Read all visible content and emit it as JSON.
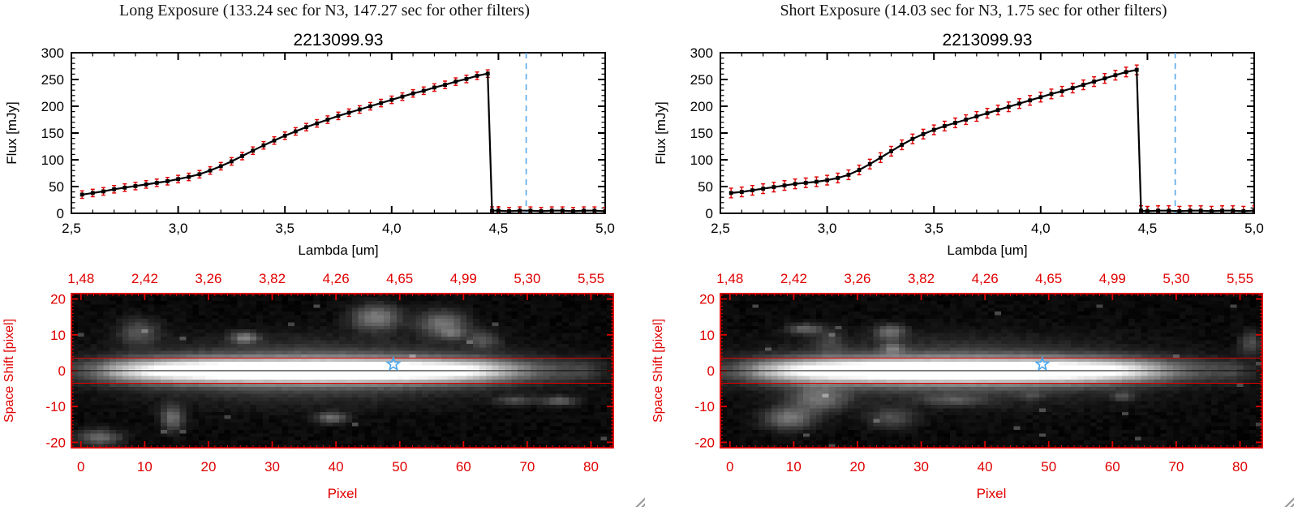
{
  "window": {
    "background": "#ffffff"
  },
  "colors": {
    "axis_black": "#000000",
    "axis_red": "#e00000",
    "error_red": "#e00000",
    "dashed_line_blue": "#57a7e8",
    "star_blue": "#49a8f0"
  },
  "panels": [
    {
      "id": "long-exposure",
      "title": "Long Exposure (133.24 sec for N3, 147.27 sec for other filters)"
    },
    {
      "id": "short-exposure",
      "title": "Short Exposure (14.03 sec for N3, 1.75 sec for other filters)"
    }
  ],
  "chart_data": [
    {
      "panel": "long-exposure",
      "type": "line",
      "title": "2213099.93",
      "xlabel": "Lambda [um]",
      "ylabel": "Flux [mJy]",
      "xlim": [
        2.5,
        5.0
      ],
      "ylim": [
        0,
        300
      ],
      "xticks": [
        2.5,
        3.0,
        3.5,
        4.0,
        4.5,
        5.0
      ],
      "xtick_labels": [
        "2,5",
        "3,0",
        "3,5",
        "4,0",
        "4,5",
        "5,0"
      ],
      "yticks": [
        0,
        50,
        100,
        150,
        200,
        250,
        300
      ],
      "ytick_labels": [
        "0",
        "50",
        "100",
        "150",
        "200",
        "250",
        "300"
      ],
      "x_minor_step": 0.1,
      "y_minor_step": 10,
      "marker": "filled-square",
      "line_color": "#000000",
      "error_color": "#e00000",
      "error_size": 7,
      "vline": {
        "x": 4.63,
        "color": "#57a7e8",
        "style": "dashed"
      },
      "x": [
        2.55,
        2.6,
        2.65,
        2.7,
        2.75,
        2.8,
        2.85,
        2.9,
        2.95,
        3.0,
        3.05,
        3.1,
        3.15,
        3.2,
        3.25,
        3.3,
        3.35,
        3.4,
        3.45,
        3.5,
        3.55,
        3.6,
        3.65,
        3.7,
        3.75,
        3.8,
        3.85,
        3.9,
        3.95,
        4.0,
        4.05,
        4.1,
        4.15,
        4.2,
        4.25,
        4.3,
        4.35,
        4.4,
        4.45,
        4.47,
        4.5,
        4.55,
        4.6,
        4.65,
        4.7,
        4.75,
        4.8,
        4.85,
        4.9,
        4.95,
        5.0
      ],
      "y": [
        35,
        38,
        41,
        45,
        48,
        51,
        54,
        57,
        60,
        64,
        68,
        73,
        80,
        88,
        97,
        107,
        117,
        127,
        136,
        145,
        153,
        161,
        168,
        175,
        182,
        188,
        194,
        200,
        206,
        212,
        218,
        224,
        229,
        235,
        240,
        246,
        251,
        257,
        261,
        5,
        5,
        4,
        5,
        5,
        4,
        5,
        5,
        4,
        5,
        5,
        4
      ]
    },
    {
      "panel": "long-exposure",
      "type": "heatmap",
      "xlabel": "Pixel",
      "ylabel": "Space Shift [pixel]",
      "xlim": [
        -1.5,
        83.5
      ],
      "ylim": [
        -21.5,
        21.5
      ],
      "xticks": [
        0,
        10,
        20,
        30,
        40,
        50,
        60,
        70,
        80
      ],
      "xtick_labels": [
        "0",
        "10",
        "20",
        "30",
        "40",
        "50",
        "60",
        "70",
        "80"
      ],
      "yticks": [
        -20,
        -10,
        0,
        10,
        20
      ],
      "ytick_labels": [
        "-20",
        "-10",
        "0",
        "10",
        "20"
      ],
      "top_axis_labels": [
        "1,48",
        "2,42",
        "3,26",
        "3,82",
        "4,26",
        "4,65",
        "4,99",
        "5,30",
        "5,55"
      ],
      "axis_color": "#e00000",
      "aperture_lines_y": [
        3.5,
        -3.5
      ],
      "trace_line_y": 0,
      "star_marker": {
        "x": 49,
        "y": 1.8,
        "color": "#49a8f0"
      },
      "band": {
        "y_center": 0,
        "core_sigma": 2.2,
        "halo_sigma": 7.5,
        "x_center": 36
      },
      "noise_seed": 7
    },
    {
      "panel": "short-exposure",
      "type": "line",
      "title": "2213099.93",
      "xlabel": "Lambda [um]",
      "ylabel": "Flux [mJy]",
      "xlim": [
        2.5,
        5.0
      ],
      "ylim": [
        0,
        300
      ],
      "xticks": [
        2.5,
        3.0,
        3.5,
        4.0,
        4.5,
        5.0
      ],
      "xtick_labels": [
        "2,5",
        "3,0",
        "3,5",
        "4,0",
        "4,5",
        "5,0"
      ],
      "yticks": [
        0,
        50,
        100,
        150,
        200,
        250,
        300
      ],
      "ytick_labels": [
        "0",
        "50",
        "100",
        "150",
        "200",
        "250",
        "300"
      ],
      "x_minor_step": 0.1,
      "y_minor_step": 10,
      "marker": "filled-square",
      "line_color": "#000000",
      "error_color": "#e00000",
      "error_size": 9,
      "vline": {
        "x": 4.63,
        "color": "#57a7e8",
        "style": "dashed"
      },
      "x": [
        2.55,
        2.6,
        2.65,
        2.7,
        2.75,
        2.8,
        2.85,
        2.9,
        2.95,
        3.0,
        3.05,
        3.1,
        3.15,
        3.2,
        3.25,
        3.3,
        3.35,
        3.4,
        3.45,
        3.5,
        3.55,
        3.6,
        3.65,
        3.7,
        3.75,
        3.8,
        3.85,
        3.9,
        3.95,
        4.0,
        4.05,
        4.1,
        4.15,
        4.2,
        4.25,
        4.3,
        4.35,
        4.4,
        4.45,
        4.47,
        4.5,
        4.55,
        4.6,
        4.65,
        4.7,
        4.75,
        4.8,
        4.85,
        4.9,
        4.95,
        5.0
      ],
      "y": [
        38,
        40,
        43,
        46,
        49,
        52,
        55,
        57,
        59,
        62,
        66,
        72,
        81,
        92,
        104,
        116,
        128,
        139,
        148,
        156,
        163,
        169,
        175,
        181,
        187,
        193,
        199,
        205,
        211,
        217,
        223,
        228,
        234,
        240,
        246,
        252,
        258,
        264,
        268,
        5,
        4,
        5,
        5,
        4,
        5,
        5,
        4,
        5,
        5,
        4,
        5
      ]
    },
    {
      "panel": "short-exposure",
      "type": "heatmap",
      "xlabel": "Pixel",
      "ylabel": "Space Shift [pixel]",
      "xlim": [
        -1.5,
        83.5
      ],
      "ylim": [
        -21.5,
        21.5
      ],
      "xticks": [
        0,
        10,
        20,
        30,
        40,
        50,
        60,
        70,
        80
      ],
      "xtick_labels": [
        "0",
        "10",
        "20",
        "30",
        "40",
        "50",
        "60",
        "70",
        "80"
      ],
      "yticks": [
        -20,
        -10,
        0,
        10,
        20
      ],
      "ytick_labels": [
        "-20",
        "-10",
        "0",
        "10",
        "20"
      ],
      "top_axis_labels": [
        "1,48",
        "2,42",
        "3,26",
        "3,82",
        "4,26",
        "4,65",
        "4,99",
        "5,30",
        "5,55"
      ],
      "axis_color": "#e00000",
      "aperture_lines_y": [
        3.5,
        -3.5
      ],
      "trace_line_y": 0,
      "star_marker": {
        "x": 49,
        "y": 1.8,
        "color": "#49a8f0"
      },
      "band": {
        "y_center": 0,
        "core_sigma": 2.2,
        "halo_sigma": 7.5,
        "x_center": 36
      },
      "noise_seed": 13
    }
  ]
}
